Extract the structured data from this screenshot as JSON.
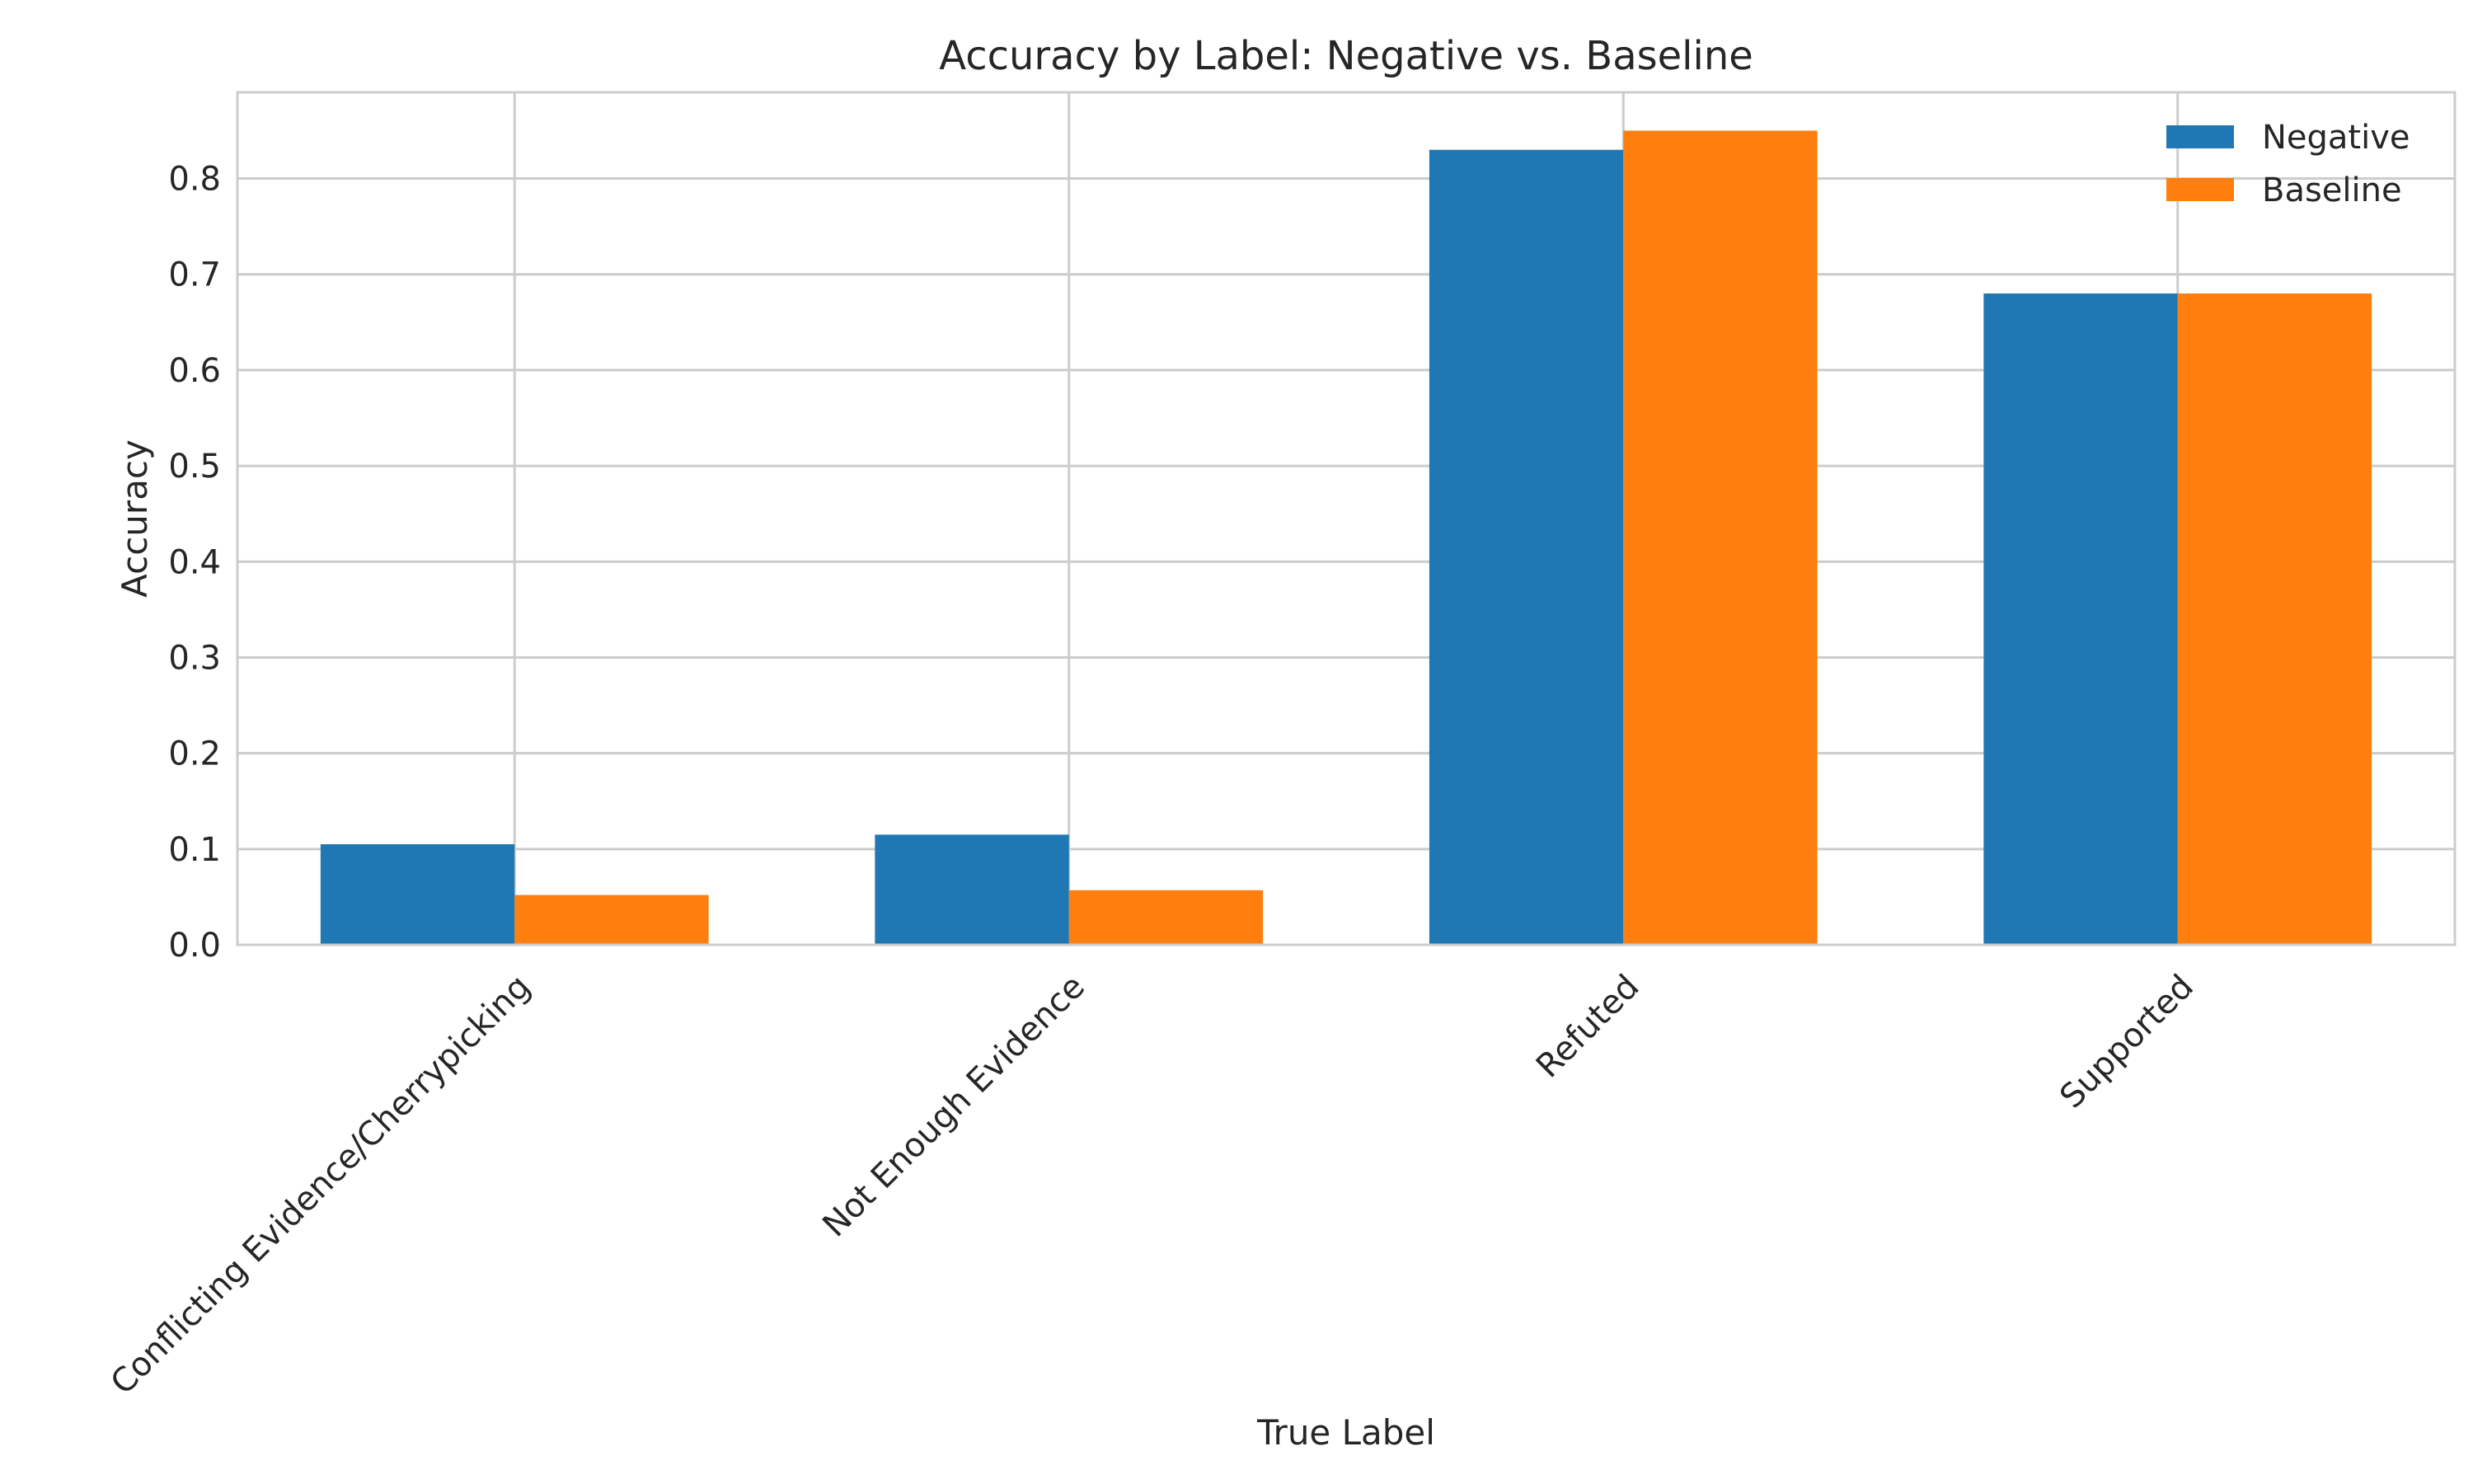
{
  "chart_data": {
    "type": "bar",
    "title": "Accuracy by Label: Negative vs. Baseline",
    "xlabel": "True Label",
    "ylabel": "Accuracy",
    "categories": [
      "Conflicting Evidence/Cherrypicking",
      "Not Enough Evidence",
      "Refuted",
      "Supported"
    ],
    "series": [
      {
        "name": "Negative",
        "color": "#1f77b4",
        "values": [
          0.105,
          0.115,
          0.83,
          0.68
        ]
      },
      {
        "name": "Baseline",
        "color": "#ff7f0e",
        "values": [
          0.052,
          0.057,
          0.85,
          0.68
        ]
      }
    ],
    "ylim": [
      0,
      0.89
    ],
    "yticks": [
      0.0,
      0.1,
      0.2,
      0.3,
      0.4,
      0.5,
      0.6,
      0.7,
      0.8
    ],
    "ytick_labels": [
      "0.0",
      "0.1",
      "0.2",
      "0.3",
      "0.4",
      "0.5",
      "0.6",
      "0.7",
      "0.8"
    ],
    "grid": true,
    "legend_position": "top-right"
  }
}
